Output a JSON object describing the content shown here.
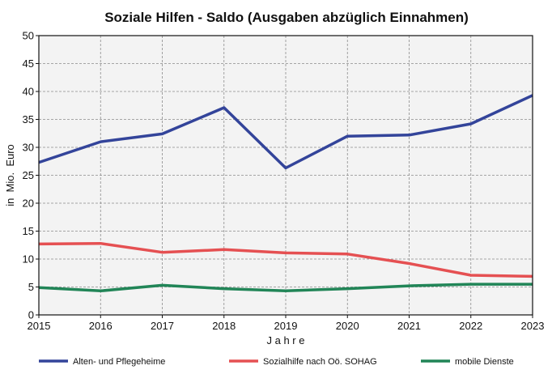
{
  "chart_data": {
    "type": "line",
    "title": "Soziale Hilfen - Saldo (Ausgaben abzüglich Einnahmen)",
    "xlabel": "J a h r e",
    "ylabel": "in  Mio.  Euro",
    "x": [
      2015,
      2016,
      2017,
      2018,
      2019,
      2020,
      2021,
      2022,
      2023
    ],
    "ylim": [
      0,
      50
    ],
    "yticks": [
      0,
      5,
      10,
      15,
      20,
      25,
      30,
      35,
      40,
      45,
      50
    ],
    "grid": true,
    "legend_position": "bottom",
    "series": [
      {
        "name": "Alten- und Pflegeheime",
        "color": "#33449a",
        "values": [
          27.3,
          31.0,
          32.4,
          37.1,
          26.3,
          32.0,
          32.2,
          34.2,
          39.3
        ]
      },
      {
        "name": "Sozialhilfe nach Oö. SOHAG",
        "color": "#e55052",
        "values": [
          12.7,
          12.8,
          11.2,
          11.7,
          11.1,
          10.9,
          9.2,
          7.1,
          6.9
        ]
      },
      {
        "name": "mobile Dienste",
        "color": "#218557",
        "values": [
          4.9,
          4.3,
          5.3,
          4.7,
          4.3,
          4.7,
          5.2,
          5.5,
          5.5
        ]
      }
    ]
  }
}
